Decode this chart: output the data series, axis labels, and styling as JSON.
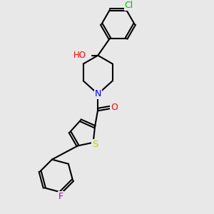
{
  "background_color": "#e8e8e8",
  "bond_color": "#000000",
  "bond_width": 1.5,
  "atom_colors": {
    "Cl": "#00bb00",
    "O": "#ff0000",
    "N": "#0000ff",
    "S": "#cccc00",
    "F": "#aa00aa",
    "H": "#000000",
    "C": "#000000"
  },
  "font_size": 8.5
}
